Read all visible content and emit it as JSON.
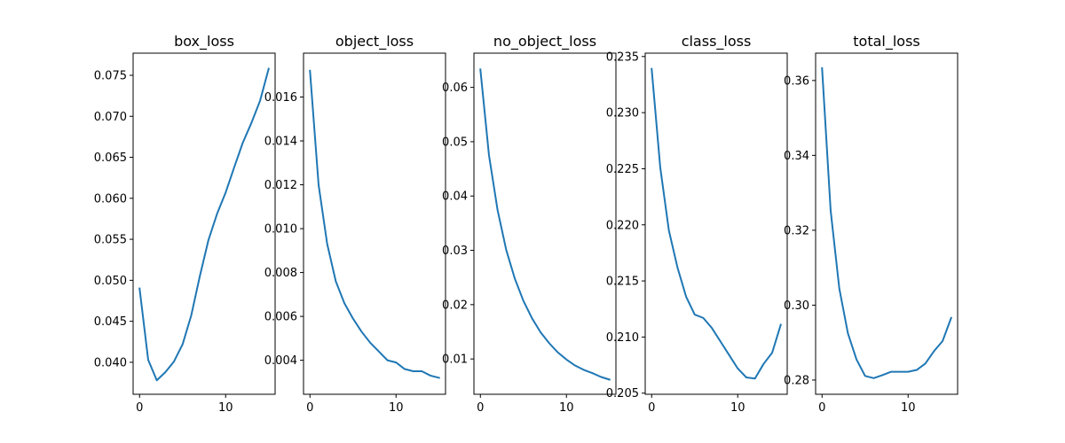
{
  "chart_data": [
    {
      "type": "line",
      "title": "box_loss",
      "xlabel": "",
      "ylabel": "",
      "xlim": [
        -0.75,
        15.75
      ],
      "ylim": [
        0.0361,
        0.0777
      ],
      "x_ticks": [
        0,
        10
      ],
      "x_tick_labels": [
        "0",
        "10"
      ],
      "y_ticks": [
        0.04,
        0.045,
        0.05,
        0.055,
        0.06,
        0.065,
        0.07,
        0.075
      ],
      "y_tick_labels": [
        "0.040",
        "0.045",
        "0.050",
        "0.055",
        "0.060",
        "0.065",
        "0.070",
        "0.075"
      ],
      "grid": false,
      "line_color": "#1f77b4",
      "x": [
        0,
        1,
        2,
        3,
        4,
        5,
        6,
        7,
        8,
        9,
        10,
        11,
        12,
        13,
        14,
        15
      ],
      "y": [
        0.049,
        0.0403,
        0.0378,
        0.0388,
        0.0401,
        0.0422,
        0.0457,
        0.0505,
        0.0549,
        0.0581,
        0.0607,
        0.0638,
        0.0668,
        0.0692,
        0.0719,
        0.0758
      ]
    },
    {
      "type": "line",
      "title": "object_loss",
      "xlabel": "",
      "ylabel": "",
      "xlim": [
        -0.75,
        15.75
      ],
      "ylim": [
        0.00245,
        0.018
      ],
      "x_ticks": [
        0,
        10
      ],
      "x_tick_labels": [
        "0",
        "10"
      ],
      "y_ticks": [
        0.004,
        0.006,
        0.008,
        0.01,
        0.012,
        0.014,
        0.016
      ],
      "y_tick_labels": [
        "0.004",
        "0.006",
        "0.008",
        "0.010",
        "0.012",
        "0.014",
        "0.016"
      ],
      "grid": false,
      "line_color": "#1f77b4",
      "x": [
        0,
        1,
        2,
        3,
        4,
        5,
        6,
        7,
        8,
        9,
        10,
        11,
        12,
        13,
        14,
        15
      ],
      "y": [
        0.0172,
        0.012,
        0.0093,
        0.0076,
        0.0066,
        0.0059,
        0.0053,
        0.0048,
        0.0044,
        0.004,
        0.0039,
        0.0036,
        0.0035,
        0.0035,
        0.0033,
        0.0032
      ]
    },
    {
      "type": "line",
      "title": "no_object_loss",
      "xlabel": "",
      "ylabel": "",
      "xlim": [
        -0.75,
        15.75
      ],
      "ylim": [
        0.0035,
        0.0663
      ],
      "x_ticks": [
        0,
        10
      ],
      "x_tick_labels": [
        "0",
        "10"
      ],
      "y_ticks": [
        0.01,
        0.02,
        0.03,
        0.04,
        0.05,
        0.06
      ],
      "y_tick_labels": [
        "0.01",
        "0.02",
        "0.03",
        "0.04",
        "0.05",
        "0.06"
      ],
      "grid": false,
      "line_color": "#1f77b4",
      "x": [
        0,
        1,
        2,
        3,
        4,
        5,
        6,
        7,
        8,
        9,
        10,
        11,
        12,
        13,
        14,
        15
      ],
      "y": [
        0.0633,
        0.0475,
        0.0374,
        0.0301,
        0.0248,
        0.0207,
        0.0175,
        0.0149,
        0.0129,
        0.0112,
        0.0099,
        0.0088,
        0.008,
        0.0074,
        0.0067,
        0.0062
      ]
    },
    {
      "type": "line",
      "title": "class_loss",
      "xlabel": "",
      "ylabel": "",
      "xlim": [
        -0.75,
        15.75
      ],
      "ylim": [
        0.2049,
        0.2353
      ],
      "x_ticks": [
        0,
        10
      ],
      "x_tick_labels": [
        "0",
        "10"
      ],
      "y_ticks": [
        0.205,
        0.21,
        0.215,
        0.22,
        0.225,
        0.23,
        0.235
      ],
      "y_tick_labels": [
        "0.205",
        "0.210",
        "0.215",
        "0.220",
        "0.225",
        "0.230",
        "0.235"
      ],
      "grid": false,
      "line_color": "#1f77b4",
      "x": [
        0,
        1,
        2,
        3,
        4,
        5,
        6,
        7,
        8,
        9,
        10,
        11,
        12,
        13,
        14,
        15
      ],
      "y": [
        0.2339,
        0.2251,
        0.2195,
        0.2162,
        0.2136,
        0.212,
        0.2117,
        0.2108,
        0.2096,
        0.2084,
        0.2072,
        0.2064,
        0.2063,
        0.2076,
        0.2086,
        0.2111
      ]
    },
    {
      "type": "line",
      "title": "total_loss",
      "xlabel": "",
      "ylabel": "",
      "xlim": [
        -0.75,
        15.75
      ],
      "ylim": [
        0.2762,
        0.3673
      ],
      "x_ticks": [
        0,
        10
      ],
      "x_tick_labels": [
        "0",
        "10"
      ],
      "y_ticks": [
        0.28,
        0.3,
        0.32,
        0.34,
        0.36
      ],
      "y_tick_labels": [
        "0.28",
        "0.30",
        "0.32",
        "0.34",
        "0.36"
      ],
      "grid": false,
      "line_color": "#1f77b4",
      "x": [
        0,
        1,
        2,
        3,
        4,
        5,
        6,
        7,
        8,
        9,
        10,
        11,
        12,
        13,
        14,
        15
      ],
      "y": [
        0.3633,
        0.3252,
        0.3045,
        0.2925,
        0.2855,
        0.2811,
        0.2805,
        0.2813,
        0.2822,
        0.2822,
        0.2822,
        0.2827,
        0.2844,
        0.2877,
        0.2904,
        0.2966
      ]
    }
  ]
}
